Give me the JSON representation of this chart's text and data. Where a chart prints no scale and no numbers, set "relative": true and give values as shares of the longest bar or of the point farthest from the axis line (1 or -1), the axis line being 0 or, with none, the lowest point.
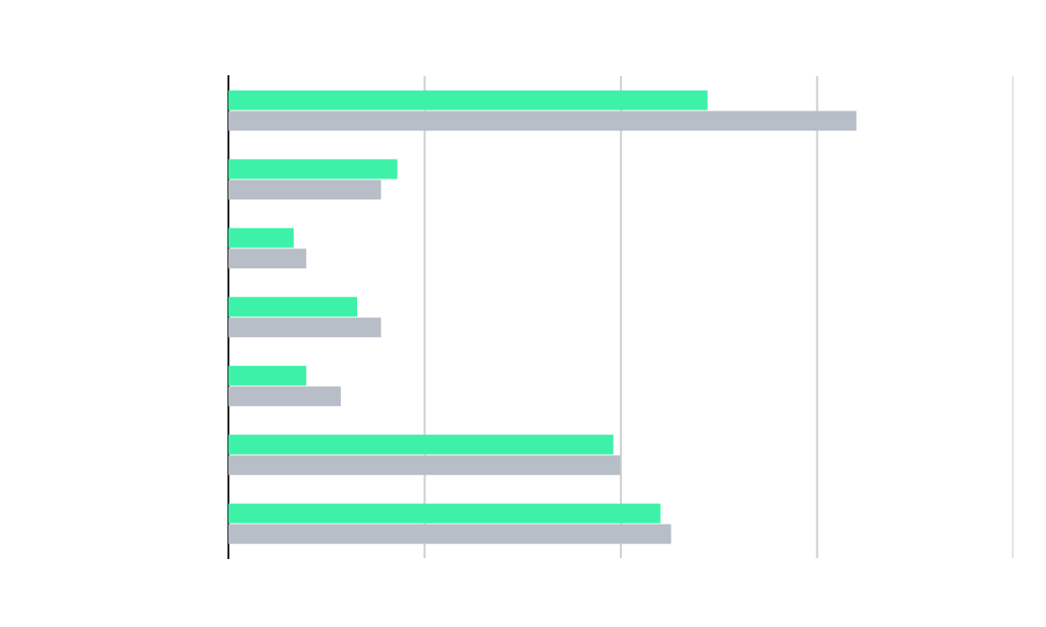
{
  "chart_data": {
    "type": "bar",
    "orientation": "horizontal",
    "relative": true,
    "grid": "x",
    "categories": [
      null,
      null,
      null,
      null,
      null,
      null,
      null
    ],
    "series": [
      {
        "color": "#3df2a8",
        "values": [
          0.763,
          0.269,
          0.104,
          0.205,
          0.124,
          0.613,
          0.688
        ]
      },
      {
        "color": "#b8bec8",
        "values": [
          1,
          0.243,
          0.124,
          0.243,
          0.179,
          0.624,
          0.705
        ]
      }
    ]
  }
}
